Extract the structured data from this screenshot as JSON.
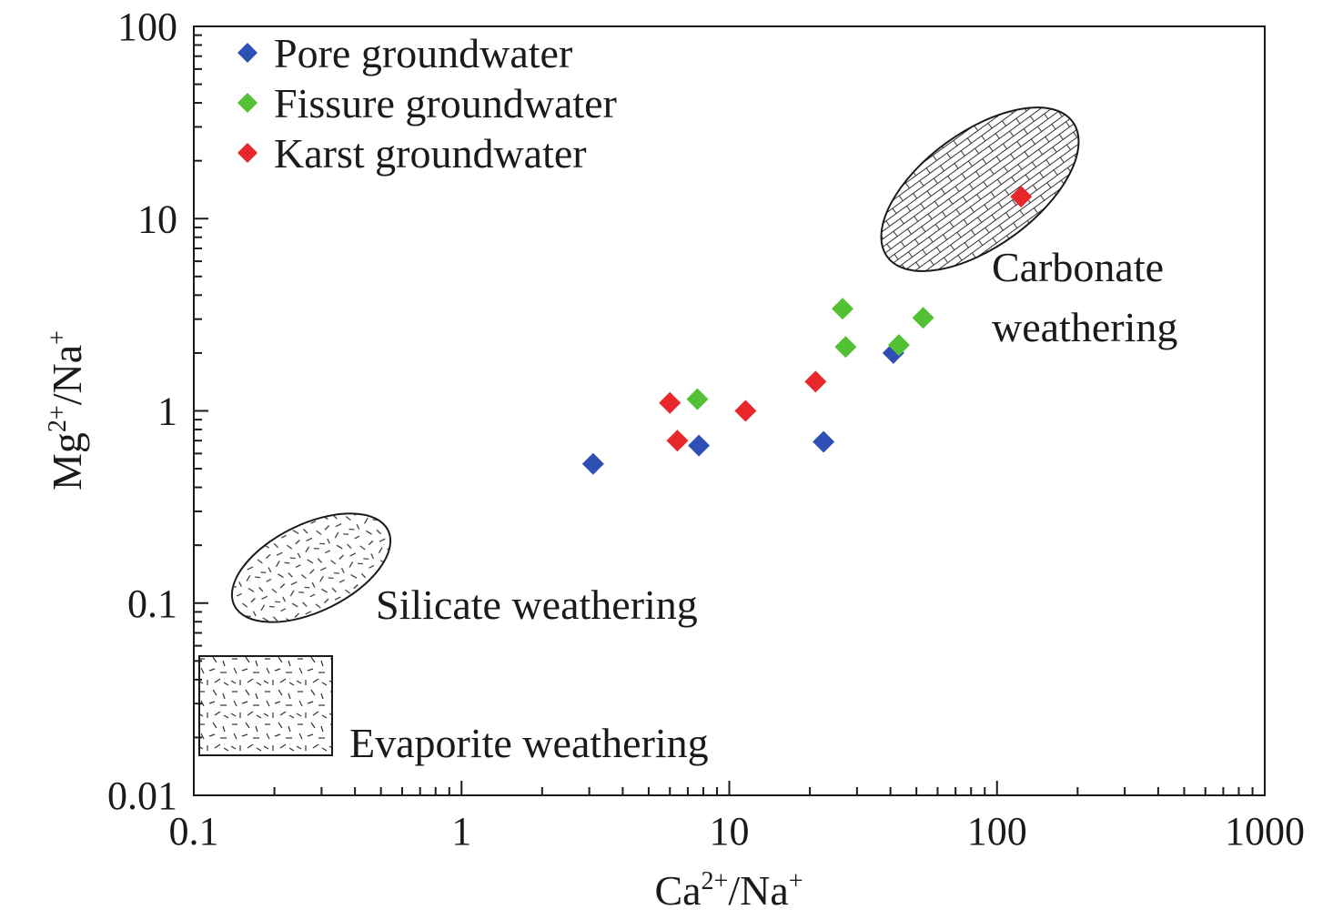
{
  "chart_data": {
    "type": "scatter",
    "x_scale": "log",
    "y_scale": "log",
    "xlim": [
      0.1,
      1000
    ],
    "ylim": [
      0.01,
      100
    ],
    "grid": false,
    "legend_placement": "top-left",
    "xlabel": {
      "base": "Ca",
      "sup1": "2+",
      "mid": "/Na",
      "sup2": "+"
    },
    "ylabel": {
      "base": "Mg",
      "sup1": "2+",
      "mid": "/Na",
      "sup2": "+"
    },
    "x_ticks": [
      {
        "value": 0.1,
        "label": "0.1"
      },
      {
        "value": 1,
        "label": "1"
      },
      {
        "value": 10,
        "label": "10"
      },
      {
        "value": 100,
        "label": "100"
      },
      {
        "value": 1000,
        "label": "1000"
      }
    ],
    "y_ticks": [
      {
        "value": 0.01,
        "label": "0.01"
      },
      {
        "value": 0.1,
        "label": "0.1"
      },
      {
        "value": 1,
        "label": "1"
      },
      {
        "value": 10,
        "label": "10"
      },
      {
        "value": 100,
        "label": "100"
      }
    ],
    "series": [
      {
        "name": "Pore groundwater",
        "color": "#2e50b4",
        "marker": "diamond",
        "points": [
          {
            "x": 3.1,
            "y": 0.53
          },
          {
            "x": 7.7,
            "y": 0.66
          },
          {
            "x": 22.5,
            "y": 0.69
          },
          {
            "x": 41,
            "y": 2.0
          }
        ]
      },
      {
        "name": "Fissure groundwater",
        "color": "#52c234",
        "marker": "diamond",
        "points": [
          {
            "x": 7.6,
            "y": 1.15
          },
          {
            "x": 26.5,
            "y": 3.4
          },
          {
            "x": 27.2,
            "y": 2.15
          },
          {
            "x": 43,
            "y": 2.2
          },
          {
            "x": 53,
            "y": 3.05
          }
        ]
      },
      {
        "name": "Karst groundwater",
        "color": "#e8272a",
        "marker": "diamond",
        "points": [
          {
            "x": 6.0,
            "y": 1.1
          },
          {
            "x": 6.4,
            "y": 0.7
          },
          {
            "x": 11.5,
            "y": 1.0
          },
          {
            "x": 21,
            "y": 1.42
          },
          {
            "x": 123,
            "y": 13
          }
        ]
      }
    ],
    "regions": [
      {
        "label_lines": [
          "Carbonate",
          "weathering"
        ],
        "shape": "ellipse",
        "pattern": "brick"
      },
      {
        "label_lines": [
          "Silicate weathering"
        ],
        "shape": "ellipse",
        "pattern": "dashes"
      },
      {
        "label_lines": [
          "Evaporite weathering"
        ],
        "shape": "rectangle",
        "pattern": "dashes"
      }
    ]
  }
}
